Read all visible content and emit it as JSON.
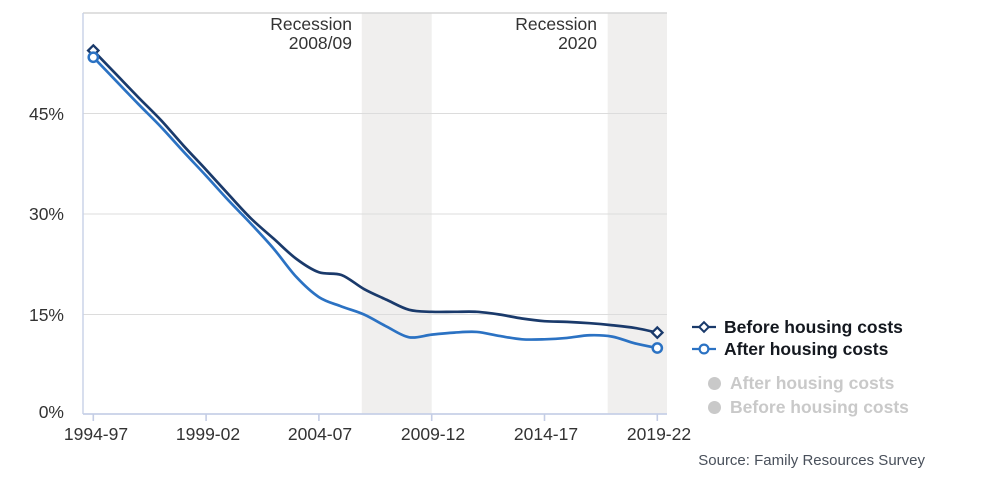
{
  "chart_data": {
    "type": "line",
    "x_tick_labels": [
      "1994-97",
      "1999-02",
      "2004-07",
      "2009-12",
      "2014-17",
      "2019-22"
    ],
    "y_tick_labels": [
      "45%",
      "30%",
      "15%",
      "0%"
    ],
    "y_gridline_values": [
      45,
      30,
      15
    ],
    "ylim": [
      0,
      60
    ],
    "grid_on": true,
    "legend_position": "right",
    "band_color": "#f0efee",
    "categories": [
      "1994-97",
      "1995-98",
      "1996-99",
      "1997-00",
      "1998-01",
      "1999-02",
      "2000-03",
      "2001-04",
      "2002-05",
      "2003-06",
      "2004-07",
      "2005-08",
      "2006-09",
      "2007-10",
      "2008-11",
      "2009-12",
      "2010-13",
      "2011-14",
      "2012-15",
      "2013-16",
      "2014-17",
      "2015-18",
      "2016-19",
      "2017-20",
      "2018-21",
      "2019-22"
    ],
    "series": [
      {
        "name": "Before housing costs",
        "color": "#1a3a6b",
        "marker": "diamond",
        "values": [
          54.4,
          50.9,
          47.4,
          44.0,
          40.2,
          36.6,
          32.9,
          29.3,
          26.3,
          23.3,
          21.3,
          20.9,
          18.8,
          17.2,
          15.7,
          15.4,
          15.4,
          15.4,
          15.0,
          14.4,
          14.0,
          13.9,
          13.7,
          13.4,
          13.0,
          12.3
        ]
      },
      {
        "name": "After housing costs",
        "color": "#2b72c3",
        "marker": "circle",
        "values": [
          53.4,
          49.9,
          46.4,
          43.0,
          39.3,
          35.7,
          32.0,
          28.5,
          24.8,
          20.6,
          17.6,
          16.2,
          15.0,
          13.2,
          11.6,
          12.0,
          12.3,
          12.4,
          11.8,
          11.3,
          11.3,
          11.5,
          11.9,
          11.7,
          10.7,
          10.0
        ]
      }
    ],
    "annotations": [
      {
        "line1": "Recession",
        "line2": "2008/09",
        "start_index": 11.9,
        "end_index": 15.0
      },
      {
        "line1": "Recession",
        "line2": "2020",
        "start_index": 22.8,
        "end_index": 25.5
      }
    ]
  },
  "legend": {
    "active": [
      {
        "label": "Before housing costs"
      },
      {
        "label": "After housing costs"
      }
    ],
    "inactive": [
      {
        "label": "After housing costs"
      },
      {
        "label": "Before housing costs"
      }
    ]
  },
  "source_note": "Source: Family Resources Survey"
}
